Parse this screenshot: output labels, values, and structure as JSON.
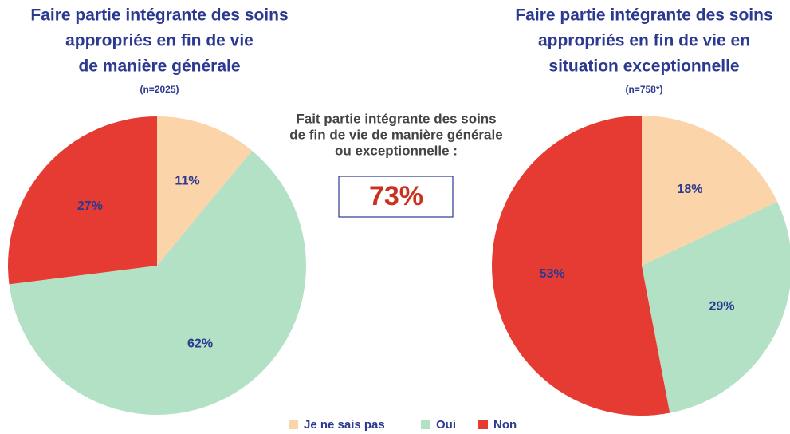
{
  "chart_data": [
    {
      "type": "pie",
      "title": [
        "Faire partie intégrante des soins",
        "appropriés en fin de vie",
        "de manière générale"
      ],
      "subtitle": "(n=2025)",
      "categories": [
        "Je ne sais pas",
        "Oui",
        "Non"
      ],
      "values": [
        11,
        62,
        27
      ],
      "value_labels": [
        "11%",
        "62%",
        "27%"
      ],
      "colors": [
        "#fcd4aa",
        "#b3e1c5",
        "#e53b33"
      ]
    },
    {
      "type": "pie",
      "title": [
        "Faire partie intégrante des soins",
        "appropriés en fin de vie en",
        "situation exceptionnelle"
      ],
      "subtitle": "(n=758*)",
      "categories": [
        "Je ne sais pas",
        "Oui",
        "Non"
      ],
      "values": [
        18,
        29,
        53
      ],
      "value_labels": [
        "18%",
        "29%",
        "53%"
      ],
      "colors": [
        "#fcd4aa",
        "#b3e1c5",
        "#e53b33"
      ]
    }
  ],
  "callout": {
    "text": [
      "Fait partie intégrante des soins",
      "de fin de vie de manière générale",
      "ou exceptionnelle :"
    ],
    "label": "73%"
  }
}
